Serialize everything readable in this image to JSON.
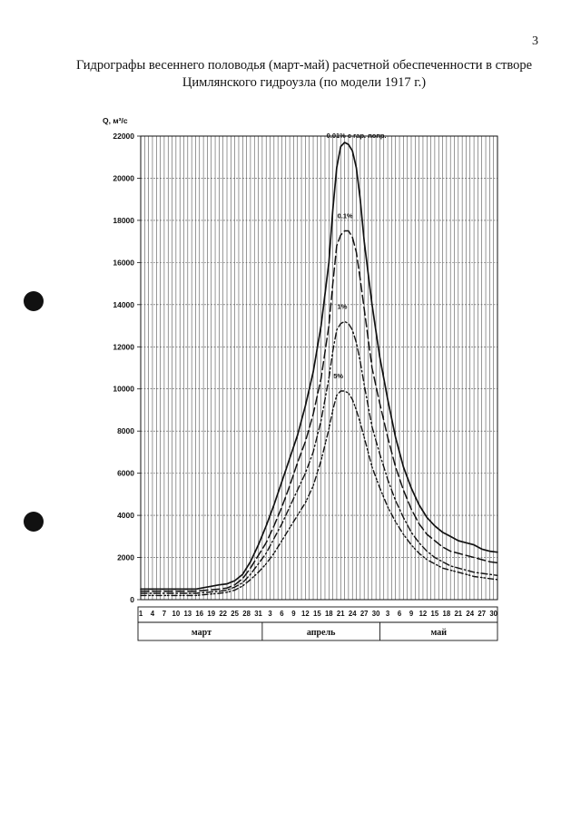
{
  "page": {
    "number": "3",
    "title_line1": "Гидрографы весеннего половодья (март-май) расчетной обеспеченности в створе",
    "title_line2": "Цимлянского гидроузла (по модели 1917 г.)"
  },
  "chart_data": {
    "type": "line",
    "title": "Гидрографы весеннего половодья (март-май) расчетной обеспеченности в створе Цимлянского гидроузла (по модели 1917 г.)",
    "ylabel": "Q, м³/с",
    "xlabel": "",
    "ylim": [
      0,
      22000
    ],
    "yticks": [
      0,
      2000,
      4000,
      6000,
      8000,
      10000,
      12000,
      14000,
      16000,
      18000,
      20000,
      22000
    ],
    "xlim": [
      1,
      92
    ],
    "x_tick_labels": [
      "1",
      "4",
      "7",
      "10",
      "13",
      "16",
      "19",
      "22",
      "25",
      "28",
      "31",
      "3",
      "6",
      "9",
      "12",
      "15",
      "18",
      "21",
      "24",
      "27",
      "30",
      "3",
      "6",
      "9",
      "12",
      "15",
      "18",
      "21",
      "24",
      "27",
      "30"
    ],
    "months": [
      "март",
      "апрель",
      "май"
    ],
    "grid": true,
    "series": [
      {
        "name": "0.01% с гар. попр.",
        "style": "solid",
        "x": [
          1,
          10,
          15,
          18,
          21,
          23,
          25,
          27,
          29,
          31,
          33,
          35,
          37,
          39,
          41,
          43,
          45,
          47,
          49,
          50,
          51,
          52,
          53,
          54,
          55,
          56,
          57,
          58,
          59,
          60,
          62,
          64,
          66,
          68,
          70,
          72,
          74,
          76,
          78,
          80,
          82,
          84,
          86,
          88,
          90,
          92
        ],
        "y": [
          500,
          500,
          500,
          600,
          700,
          750,
          900,
          1200,
          1800,
          2600,
          3500,
          4500,
          5600,
          6700,
          7800,
          9200,
          10800,
          13000,
          16000,
          18500,
          20500,
          21500,
          21700,
          21600,
          21300,
          20500,
          19000,
          17000,
          15500,
          14000,
          11500,
          9500,
          7700,
          6300,
          5300,
          4500,
          3900,
          3500,
          3200,
          3000,
          2800,
          2700,
          2600,
          2400,
          2300,
          2250
        ]
      },
      {
        "name": "0.1%",
        "style": "dash",
        "x": [
          1,
          10,
          15,
          18,
          21,
          23,
          25,
          27,
          29,
          31,
          33,
          35,
          37,
          39,
          41,
          43,
          45,
          47,
          49,
          50,
          51,
          52,
          53,
          54,
          55,
          56,
          57,
          58,
          59,
          60,
          62,
          64,
          66,
          68,
          70,
          72,
          74,
          76,
          78,
          80,
          82,
          84,
          86,
          88,
          90,
          92
        ],
        "y": [
          400,
          400,
          400,
          450,
          500,
          550,
          700,
          1000,
          1500,
          2100,
          2700,
          3500,
          4400,
          5400,
          6500,
          7500,
          8800,
          10500,
          13000,
          15000,
          16800,
          17300,
          17500,
          17500,
          17200,
          16500,
          15200,
          13800,
          12400,
          11000,
          9300,
          7700,
          6300,
          5200,
          4300,
          3600,
          3100,
          2800,
          2500,
          2300,
          2200,
          2100,
          2000,
          1900,
          1800,
          1750
        ]
      },
      {
        "name": "1%",
        "style": "dashdot",
        "x": [
          1,
          10,
          15,
          18,
          21,
          23,
          25,
          27,
          29,
          31,
          33,
          35,
          37,
          39,
          41,
          43,
          45,
          47,
          49,
          50,
          51,
          52,
          53,
          54,
          55,
          56,
          57,
          58,
          59,
          60,
          62,
          64,
          66,
          68,
          70,
          72,
          74,
          76,
          78,
          80,
          82,
          84,
          86,
          88,
          90,
          92
        ],
        "y": [
          300,
          300,
          300,
          350,
          400,
          450,
          600,
          800,
          1200,
          1700,
          2200,
          2900,
          3600,
          4400,
          5200,
          6000,
          7000,
          8500,
          10500,
          11800,
          12800,
          13100,
          13200,
          13100,
          12800,
          12200,
          11300,
          10200,
          9200,
          8200,
          6900,
          5700,
          4700,
          3900,
          3200,
          2700,
          2300,
          2000,
          1800,
          1600,
          1500,
          1400,
          1300,
          1250,
          1200,
          1150
        ]
      },
      {
        "name": "5%",
        "style": "dashdotdot",
        "x": [
          1,
          10,
          15,
          18,
          21,
          23,
          25,
          27,
          29,
          31,
          33,
          35,
          37,
          39,
          41,
          43,
          45,
          47,
          49,
          50,
          51,
          52,
          53,
          54,
          55,
          56,
          57,
          58,
          59,
          60,
          62,
          64,
          66,
          68,
          70,
          72,
          74,
          76,
          78,
          80,
          82,
          84,
          86,
          88,
          90,
          92
        ],
        "y": [
          200,
          200,
          200,
          250,
          300,
          350,
          450,
          650,
          950,
          1300,
          1700,
          2200,
          2800,
          3400,
          4000,
          4600,
          5400,
          6600,
          8100,
          9000,
          9700,
          9900,
          9900,
          9800,
          9500,
          9000,
          8400,
          7700,
          7000,
          6300,
          5300,
          4400,
          3700,
          3100,
          2600,
          2200,
          1900,
          1700,
          1500,
          1400,
          1300,
          1200,
          1100,
          1050,
          1000,
          950
        ]
      }
    ]
  }
}
